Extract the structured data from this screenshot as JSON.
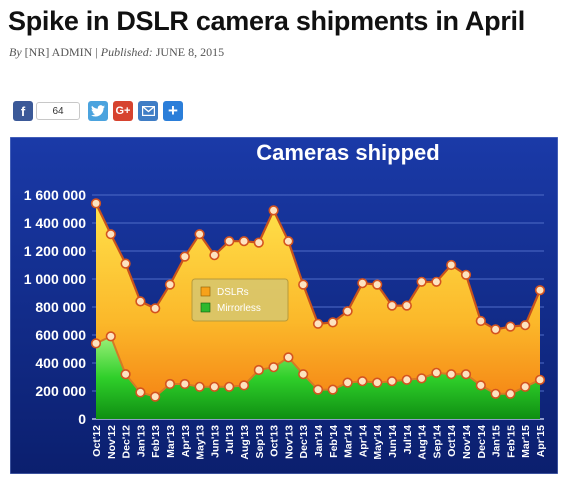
{
  "article": {
    "title": "Spike in DSLR camera shipments in April",
    "by_label": "By",
    "author": "[NR] ADMIN",
    "separator": "|",
    "published_label": "Published:",
    "date": "JUNE 8, 2015"
  },
  "share": {
    "facebook_count": "64",
    "icons": [
      "facebook-icon",
      "twitter-icon",
      "google-plus-icon",
      "email-icon",
      "add-share-icon"
    ],
    "colors": {
      "facebook": "#3b5998",
      "twitter": "#4ba3de",
      "google_plus": "#d6432f",
      "email": "#3f7dc5",
      "more": "#2b7ed9"
    }
  },
  "chart_data": {
    "type": "area",
    "title": "Cameras shipped",
    "xlabel": "",
    "ylabel": "",
    "ylim": [
      0,
      1600000
    ],
    "yticks": [
      0,
      200000,
      400000,
      600000,
      800000,
      1000000,
      1200000,
      1400000,
      1600000
    ],
    "ytick_labels": [
      "0",
      "200 000",
      "400 000",
      "600 000",
      "800 000",
      "1 000 000",
      "1 200 000",
      "1 400 000",
      "1 600 000"
    ],
    "grid": true,
    "legend_position": "center",
    "categories": [
      "Oct'12",
      "Nov'12",
      "Dec'12",
      "Jan'13",
      "Feb'13",
      "Mar'13",
      "Apr'13",
      "May'13",
      "Jun'13",
      "Jul'13",
      "Aug'13",
      "Sep'13",
      "Oct'13",
      "Nov'13",
      "Dec'13",
      "Jan'14",
      "Feb'14",
      "Mar'14",
      "Apr'14",
      "May'14",
      "Jun'14",
      "Jul'14",
      "Aug'14",
      "Sep'14",
      "Oct'14",
      "Nov'14",
      "Dec'14",
      "Jan'15",
      "Feb'15",
      "Mar'15",
      "Apr'15"
    ],
    "series": [
      {
        "name": "DSLRs",
        "color": "#f7a21b",
        "values": [
          1540000,
          1320000,
          1110000,
          840000,
          790000,
          960000,
          1160000,
          1320000,
          1170000,
          1270000,
          1270000,
          1260000,
          1490000,
          1270000,
          960000,
          680000,
          690000,
          770000,
          970000,
          960000,
          810000,
          810000,
          980000,
          980000,
          1100000,
          1030000,
          700000,
          640000,
          660000,
          670000,
          920000
        ]
      },
      {
        "name": "Mirrorless",
        "color": "#2db82d",
        "values": [
          540000,
          590000,
          320000,
          190000,
          160000,
          250000,
          250000,
          230000,
          230000,
          230000,
          240000,
          350000,
          370000,
          440000,
          320000,
          210000,
          210000,
          260000,
          270000,
          260000,
          270000,
          280000,
          290000,
          330000,
          320000,
          320000,
          240000,
          180000,
          180000,
          230000,
          280000
        ]
      }
    ]
  }
}
